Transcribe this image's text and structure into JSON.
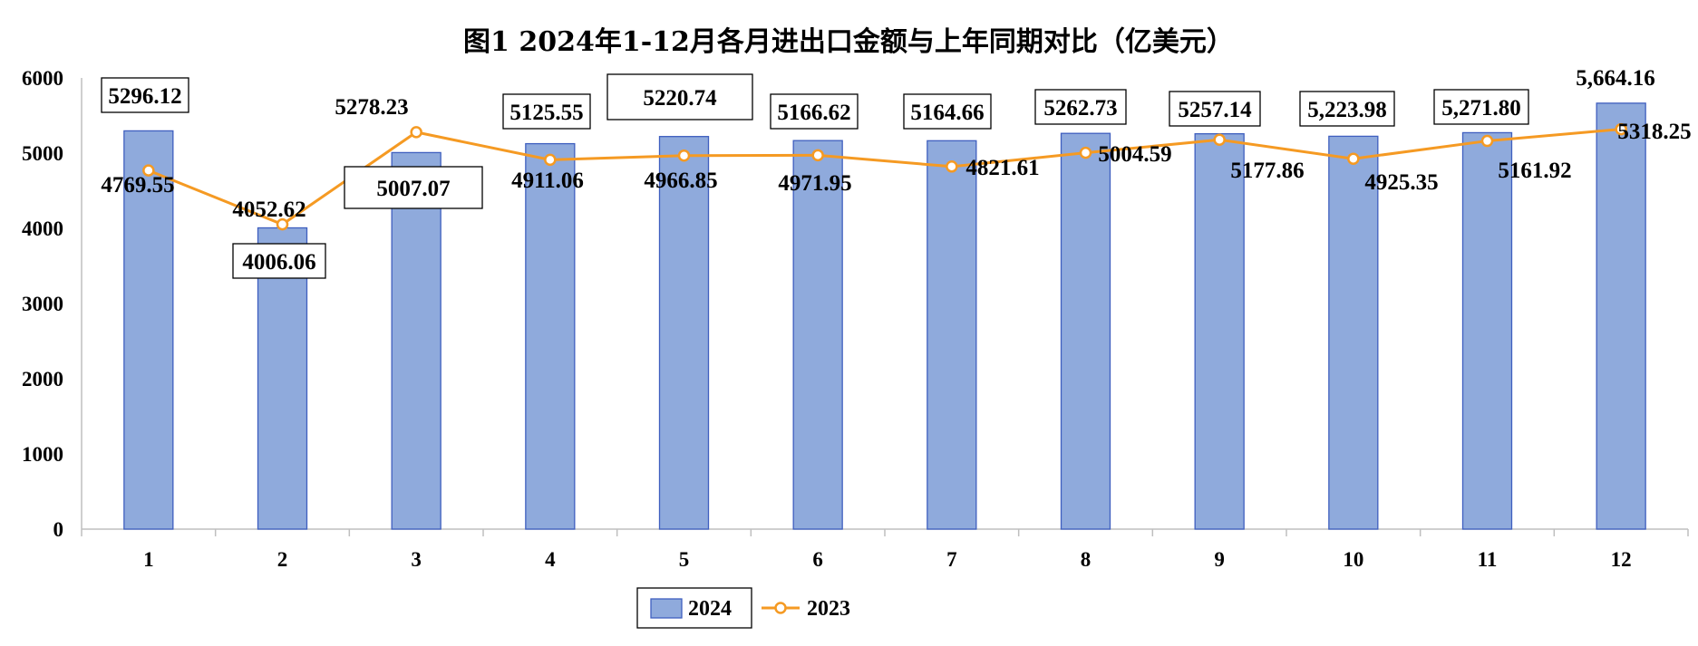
{
  "chart_data": {
    "type": "bar",
    "title": "图1 2024年1-12月各月进出口金额与上年同期对比（亿美元）",
    "xlabel": "",
    "ylabel": "",
    "categories": [
      "1",
      "2",
      "3",
      "4",
      "5",
      "6",
      "7",
      "8",
      "9",
      "10",
      "11",
      "12"
    ],
    "ylim": [
      0,
      6000
    ],
    "yticks": [
      "0",
      "1000",
      "2000",
      "3000",
      "4000",
      "5000",
      "6000"
    ],
    "grid": false,
    "legend_position": "bottom",
    "series": [
      {
        "name": "2024",
        "type": "bar",
        "color": "#8faadc",
        "values": [
          5296.12,
          4006.06,
          5007.07,
          5125.55,
          5220.74,
          5166.62,
          5164.66,
          5262.73,
          5257.14,
          5223.98,
          5271.8,
          5664.16
        ],
        "labels": [
          "5296.12",
          "4006.06",
          "5007.07",
          "5125.55",
          "5220.74",
          "5166.62",
          "5164.66",
          "5262.73",
          "5257.14",
          "5,223.98",
          "5,271.80",
          "5,664.16"
        ]
      },
      {
        "name": "2023",
        "type": "line",
        "color": "#f59a23",
        "values": [
          4769.55,
          4052.62,
          5278.23,
          4911.06,
          4966.85,
          4971.95,
          4821.61,
          5004.59,
          5177.86,
          4925.35,
          5161.92,
          5318.25
        ],
        "labels": [
          "4769.55",
          "4052.62",
          "5278.23",
          "4911.06",
          "4966.85",
          "4971.95",
          "4821.61",
          "5004.59",
          "5177.86",
          "4925.35",
          "5161.92",
          "5318.25"
        ]
      }
    ]
  }
}
